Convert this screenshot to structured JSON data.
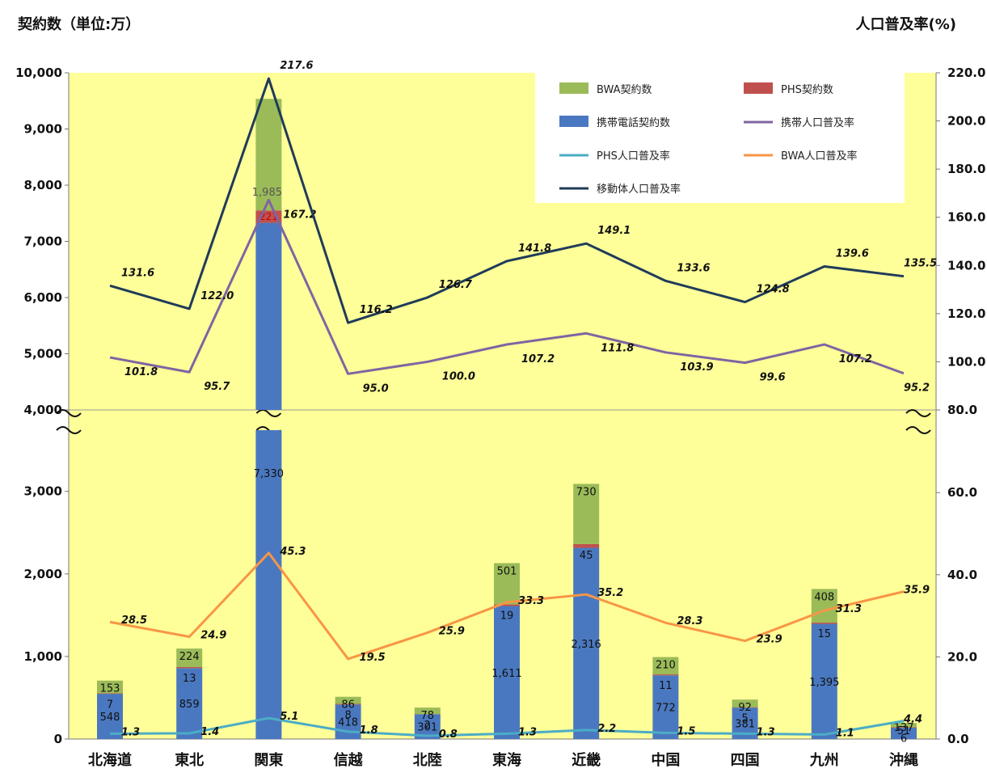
{
  "header": {
    "left_axis_title": "契約数（単位:万）",
    "right_axis_title": "人口普及率(%)"
  },
  "chart_data": {
    "type": "bar+line",
    "categories": [
      "北海道",
      "東北",
      "関東",
      "信越",
      "北陸",
      "東海",
      "近畿",
      "中国",
      "四国",
      "九州",
      "沖縄"
    ],
    "left_axis": {
      "ticks": [
        0,
        1000,
        2000,
        3000,
        4000,
        5000,
        6000,
        7000,
        8000,
        9000,
        10000
      ],
      "tick_labels": [
        "0",
        "1,000",
        "2,000",
        "3,000",
        "4,000",
        "5,000",
        "6,000",
        "7,000",
        "8,000",
        "9,000",
        "10,000"
      ],
      "broken_between": [
        3750,
        4000
      ]
    },
    "right_axis": {
      "lower_ticks": [
        0,
        20,
        40,
        60
      ],
      "lower_tick_labels": [
        "0.0",
        "20.0",
        "40.0",
        "60.0"
      ],
      "upper_ticks": [
        80,
        100,
        120,
        140,
        160,
        180,
        200,
        220
      ],
      "upper_tick_labels": [
        "80.0",
        "100.0",
        "120.0",
        "140.0",
        "160.0",
        "180.0",
        "200.0",
        "220.0"
      ]
    },
    "bar_series": [
      {
        "name": "携帯電話契約数",
        "color": "#4a78c0",
        "values": [
          548,
          859,
          7330,
          418,
          301,
          1611,
          2316,
          772,
          381,
          1395,
          137
        ],
        "labels": [
          "548",
          "859",
          "7,330",
          "418",
          "301",
          "1,611",
          "2,316",
          "772",
          "381",
          "1,395",
          "137"
        ]
      },
      {
        "name": "PHS契約数",
        "color": "#c0504d",
        "values": [
          7,
          13,
          221,
          8,
          2,
          19,
          45,
          11,
          5,
          15,
          6
        ],
        "labels": [
          "7",
          "13",
          "221",
          "8",
          "2",
          "19",
          "45",
          "11",
          "5",
          "15",
          "6"
        ]
      },
      {
        "name": "BWA契約数",
        "color": "#9bbb59",
        "values": [
          153,
          224,
          1985,
          86,
          78,
          501,
          730,
          210,
          92,
          408,
          51
        ],
        "labels": [
          "153",
          "224",
          "1,985",
          "86",
          "78",
          "501",
          "730",
          "210",
          "92",
          "408",
          "51"
        ]
      }
    ],
    "line_series": [
      {
        "name": "携帯人口普及率",
        "color": "#8064a2",
        "values": [
          101.8,
          95.7,
          167.2,
          95.0,
          100.0,
          107.2,
          111.8,
          103.9,
          99.6,
          107.2,
          95.2
        ],
        "labels": [
          "101.8",
          "95.7",
          "167.2",
          "95.0",
          "100.0",
          "107.2",
          "111.8",
          "103.9",
          "99.6",
          "107.2",
          "95.2"
        ]
      },
      {
        "name": "PHS人口普及率",
        "color": "#4bacc6",
        "values": [
          1.3,
          1.4,
          5.1,
          1.8,
          0.8,
          1.3,
          2.2,
          1.5,
          1.3,
          1.1,
          4.4
        ],
        "labels": [
          "1.3",
          "1.4",
          "5.1",
          "1.8",
          "0.8",
          "1.3",
          "2.2",
          "1.5",
          "1.3",
          "1.1",
          "4.4"
        ]
      },
      {
        "name": "BWA人口普及率",
        "color": "#f79646",
        "values": [
          28.5,
          24.9,
          45.3,
          19.5,
          25.9,
          33.3,
          35.2,
          28.3,
          23.9,
          31.3,
          35.9
        ],
        "labels": [
          "28.5",
          "24.9",
          "45.3",
          "19.5",
          "25.9",
          "33.3",
          "35.2",
          "28.3",
          "23.9",
          "31.3",
          "35.9"
        ]
      },
      {
        "name": "移動体人口普及率",
        "color": "#1f3b5a",
        "values": [
          131.6,
          122.0,
          217.6,
          116.2,
          126.7,
          141.8,
          149.1,
          133.6,
          124.8,
          139.6,
          135.5
        ],
        "labels": [
          "131.6",
          "122.0",
          "217.6",
          "116.2",
          "126.7",
          "141.8",
          "149.1",
          "133.6",
          "124.8",
          "139.6",
          "135.5"
        ]
      }
    ],
    "legend": {
      "placement": "top-right",
      "items": [
        "BWA契約数",
        "PHS契約数",
        "携帯電話契約数",
        "携帯人口普及率",
        "PHS人口普及率",
        "BWA人口普及率",
        "移動体人口普及率"
      ]
    },
    "colors": {
      "plot_background": "#ffff99"
    }
  }
}
